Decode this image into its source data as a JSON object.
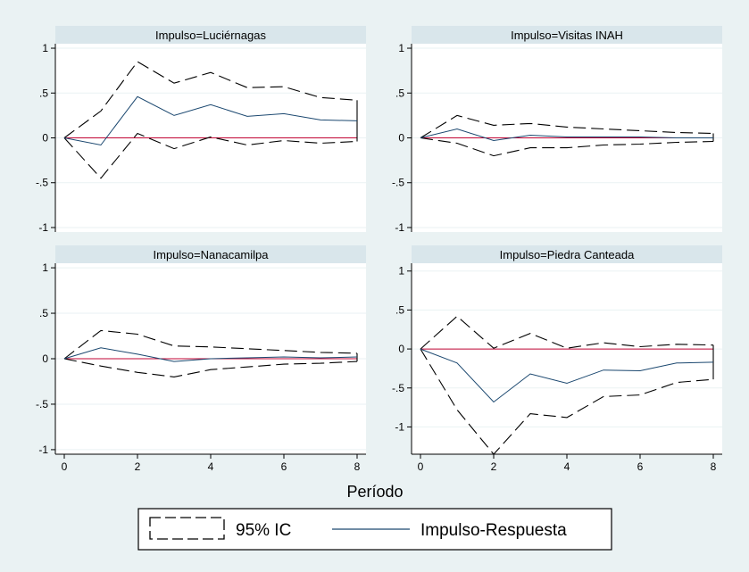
{
  "chart_data": {
    "type": "line",
    "xlabel": "Período",
    "x": [
      0,
      1,
      2,
      3,
      4,
      5,
      6,
      7,
      8
    ],
    "xticks": [
      "0",
      "2",
      "4",
      "6",
      "8"
    ],
    "legend": [
      {
        "name": "95% IC",
        "style": "dashed",
        "color": "#000000"
      },
      {
        "name": "Impulso-Respuesta",
        "style": "solid",
        "color": "#1a476f"
      }
    ],
    "zero_line_color": "#c10534",
    "panels": [
      {
        "title": "Impulso=Luciérnagas",
        "yticks": [
          "1",
          ".5",
          "0",
          "-.5",
          "-1"
        ],
        "ylim": [
          -1.05,
          1.05
        ],
        "irf": [
          0,
          -0.08,
          0.46,
          0.25,
          0.37,
          0.24,
          0.27,
          0.2,
          0.19
        ],
        "upper": [
          0,
          0.3,
          0.85,
          0.61,
          0.73,
          0.56,
          0.57,
          0.45,
          0.42
        ],
        "lower": [
          0,
          -0.45,
          0.05,
          -0.12,
          0.01,
          -0.08,
          -0.03,
          -0.06,
          -0.04
        ]
      },
      {
        "title": "Impulso=Visitas INAH",
        "yticks": [
          "1",
          ".5",
          "0",
          "-.5",
          "-1"
        ],
        "ylim": [
          -1.05,
          1.05
        ],
        "irf": [
          0,
          0.1,
          -0.03,
          0.03,
          0.01,
          0.01,
          0.01,
          0.0,
          0.0
        ],
        "upper": [
          0,
          0.25,
          0.14,
          0.16,
          0.12,
          0.1,
          0.08,
          0.06,
          0.05
        ],
        "lower": [
          0,
          -0.06,
          -0.2,
          -0.11,
          -0.11,
          -0.08,
          -0.07,
          -0.05,
          -0.04
        ]
      },
      {
        "title": "Impulso=Nanacamilpa",
        "yticks": [
          "1",
          ".5",
          "0",
          "-.5",
          "-1"
        ],
        "ylim": [
          -1.05,
          1.05
        ],
        "irf": [
          0,
          0.12,
          0.05,
          -0.03,
          0.0,
          0.01,
          0.02,
          0.01,
          0.02
        ],
        "upper": [
          0,
          0.31,
          0.27,
          0.14,
          0.13,
          0.11,
          0.09,
          0.07,
          0.06
        ],
        "lower": [
          0,
          -0.08,
          -0.15,
          -0.2,
          -0.12,
          -0.09,
          -0.06,
          -0.05,
          -0.03
        ]
      },
      {
        "title": "Impulso=Piedra Canteada",
        "yticks": [
          "1",
          ".5",
          "0",
          "-.5",
          "-1"
        ],
        "ylim": [
          -1.35,
          1.1
        ],
        "irf": [
          0,
          -0.18,
          -0.68,
          -0.32,
          -0.44,
          -0.27,
          -0.28,
          -0.18,
          -0.17
        ],
        "upper": [
          0,
          0.42,
          0.01,
          0.2,
          0.01,
          0.08,
          0.03,
          0.06,
          0.05
        ],
        "lower": [
          0,
          -0.78,
          -1.35,
          -0.83,
          -0.88,
          -0.61,
          -0.59,
          -0.43,
          -0.39
        ]
      }
    ]
  }
}
